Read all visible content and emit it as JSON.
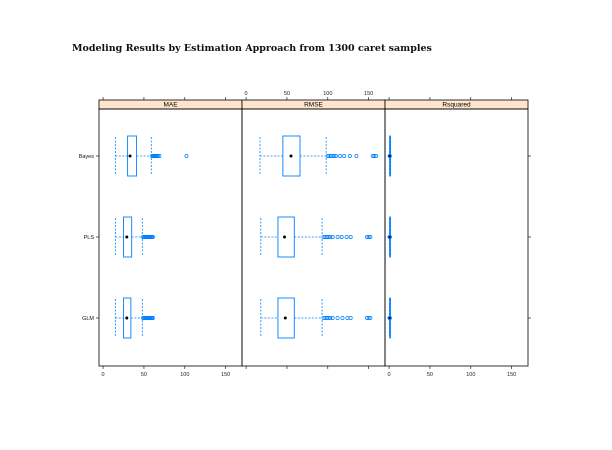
{
  "title": "Modeling Results by Estimation Approach from 1300 caret samples",
  "colors": {
    "box": "#0080ff",
    "strip_bg": "#ffe5cc",
    "median_dot": "#000000",
    "frame": "#000000"
  },
  "categories": [
    "Bayes",
    "PLS",
    "GLM"
  ],
  "axis_ticks": {
    "bottom_panels": [
      "MAE",
      "Rsquared"
    ],
    "top_panels": [
      "RMSE"
    ],
    "values": [
      0,
      50,
      100,
      150
    ],
    "labels": [
      "0",
      "50",
      "100",
      "150"
    ]
  },
  "chart_data": {
    "type": "bwplot",
    "x_range": [
      -5,
      170
    ],
    "panels": [
      {
        "name": "MAE",
        "stats": {
          "Bayes": {
            "whisker_low": 15,
            "q1": 30,
            "median": 33,
            "q3": 41,
            "whisker_high": 59,
            "outliers": [
              60,
              61,
              62,
              63,
              64,
              65,
              66,
              67,
              69,
              102
            ]
          },
          "PLS": {
            "whisker_low": 15,
            "q1": 25,
            "median": 29,
            "q3": 35,
            "whisker_high": 48,
            "outliers": [
              49,
              50,
              51,
              52,
              53,
              54,
              55,
              56,
              57,
              58,
              59,
              60,
              61
            ]
          },
          "GLM": {
            "whisker_low": 15,
            "q1": 25,
            "median": 29,
            "q3": 34,
            "whisker_high": 48,
            "outliers": [
              49,
              50,
              51,
              52,
              53,
              54,
              55,
              56,
              57,
              58,
              59,
              60,
              61
            ]
          }
        }
      },
      {
        "name": "RMSE",
        "stats": {
          "Bayes": {
            "whisker_low": 17,
            "q1": 45,
            "median": 55,
            "q3": 66,
            "whisker_high": 98,
            "outliers": [
              100,
              102,
              104,
              106,
              108,
              110,
              115,
              120,
              127,
              135,
              155,
              157,
              159
            ]
          },
          "PLS": {
            "whisker_low": 18,
            "q1": 39,
            "median": 47,
            "q3": 59,
            "whisker_high": 93,
            "outliers": [
              95,
              97,
              99,
              101,
              103,
              106,
              112,
              117,
              123,
              128,
              148,
              150,
              152
            ]
          },
          "GLM": {
            "whisker_low": 18,
            "q1": 39,
            "median": 48,
            "q3": 59,
            "whisker_high": 93,
            "outliers": [
              95,
              97,
              99,
              101,
              103,
              106,
              112,
              118,
              124,
              128,
              148,
              150,
              152
            ]
          }
        }
      },
      {
        "name": "Rsquared",
        "stats": {
          "Bayes": {
            "whisker_low": 0.5,
            "q1": 0.8,
            "median": 0.9,
            "q3": 1.0,
            "whisker_high": 1.0,
            "outliers": [
              0.6,
              1.0
            ]
          },
          "PLS": {
            "whisker_low": 0.4,
            "q1": 0.7,
            "median": 0.85,
            "q3": 0.95,
            "whisker_high": 1.0,
            "outliers": [
              0.5,
              0.8,
              1.0
            ]
          },
          "GLM": {
            "whisker_low": 0.4,
            "q1": 0.7,
            "median": 0.85,
            "q3": 0.95,
            "whisker_high": 1.0,
            "outliers": [
              0.5,
              0.8,
              1.0
            ]
          }
        }
      }
    ]
  }
}
